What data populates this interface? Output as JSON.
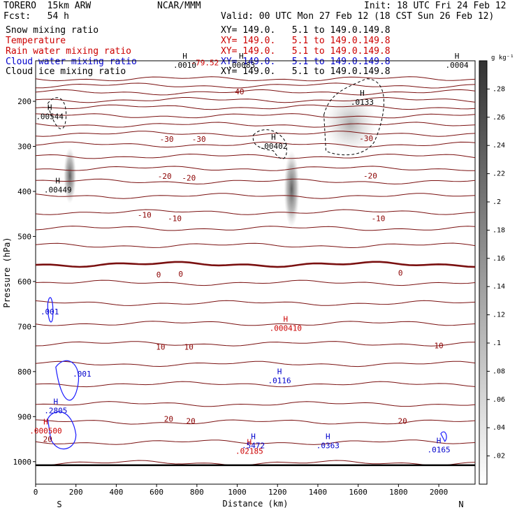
{
  "header": {
    "model": "TORERO  15km ARW",
    "center": "NCAR/MMM",
    "init": "Init: 18 UTC Fri 24 Feb 12",
    "fcst": "Fcst:   54 h",
    "valid": "Valid: 00 UTC Mon 27 Feb 12 (18 CST Sun 26 Feb 12)",
    "fields": [
      {
        "name": "Snow mixing ratio",
        "color": "#000000",
        "xy": "XY= 149.0.   5.1 to 149.0.149.8"
      },
      {
        "name": "Temperature",
        "color": "#cc0000",
        "xy": "XY= 149.0.   5.1 to 149.0.149.8"
      },
      {
        "name": "Rain water mixing ratio",
        "color": "#cc0000",
        "xy": "XY= 149.0.   5.1 to 149.0.149.8"
      },
      {
        "name": "Cloud water mixing ratio",
        "color": "#0000cc",
        "xy": "XY= 149.0.   5.1 to 149.0.149.8"
      },
      {
        "name": "Cloud ice mixing ratio",
        "color": "#000000",
        "xy": "XY= 149.0.   5.1 to 149.0.149.8"
      }
    ]
  },
  "chart_data": {
    "type": "contour",
    "xlabel": "Distance (km)",
    "ylabel": "Pressure (hPa)",
    "xlim": [
      0,
      2180
    ],
    "ylim": [
      1050,
      110
    ],
    "x_ticks": [
      0,
      200,
      400,
      600,
      800,
      1000,
      1200,
      1400,
      1600,
      1800,
      2000
    ],
    "y_ticks": [
      200,
      300,
      400,
      500,
      600,
      700,
      800,
      900,
      1000
    ],
    "x_end_labels": {
      "left": "S",
      "right": "N"
    },
    "colorbar": {
      "unit": "g kg⁻¹",
      "ticks": [
        ".02",
        ".04",
        ".06",
        ".08",
        ".1",
        ".12",
        ".14",
        ".16",
        ".18",
        ".2",
        ".22",
        ".24",
        ".26",
        ".28"
      ]
    },
    "temperature_labels": [
      {
        "x": 1000,
        "p": 178,
        "text": "-40"
      },
      {
        "x": 650,
        "p": 284,
        "text": "-30"
      },
      {
        "x": 810,
        "p": 284,
        "text": "-30"
      },
      {
        "x": 1640,
        "p": 282,
        "text": "-30"
      },
      {
        "x": 640,
        "p": 267,
        "text": "-20",
        "hidden": true
      },
      {
        "x": 640,
        "p": 366,
        "text": "-20"
      },
      {
        "x": 760,
        "p": 370,
        "text": "-20"
      },
      {
        "x": 1660,
        "p": 365,
        "text": "-20"
      },
      {
        "x": 540,
        "p": 452,
        "text": "-10"
      },
      {
        "x": 690,
        "p": 460,
        "text": "-10"
      },
      {
        "x": 1700,
        "p": 460,
        "text": "-10"
      },
      {
        "x": 610,
        "p": 585,
        "text": "0"
      },
      {
        "x": 720,
        "p": 583,
        "text": "0"
      },
      {
        "x": 1810,
        "p": 581,
        "text": "0"
      },
      {
        "x": 620,
        "p": 745,
        "text": "10"
      },
      {
        "x": 760,
        "p": 745,
        "text": "10"
      },
      {
        "x": 2000,
        "p": 742,
        "text": "10"
      },
      {
        "x": 660,
        "p": 905,
        "text": "20"
      },
      {
        "x": 770,
        "p": 910,
        "text": "20"
      },
      {
        "x": 1820,
        "p": 910,
        "text": "20"
      },
      {
        "x": 60,
        "p": 950,
        "text": "20"
      }
    ],
    "extrema": [
      {
        "x": 70,
        "p": 232,
        "h": "H",
        "v": ".00544",
        "color": "#000000"
      },
      {
        "x": 110,
        "p": 395,
        "h": "H",
        "v": ".00449",
        "color": "#000000"
      },
      {
        "x": 1180,
        "p": 298,
        "h": "H",
        "v": ".00402",
        "color": "#000000"
      },
      {
        "x": 1620,
        "p": 200,
        "h": "H",
        "v": ".0133",
        "color": "#000000"
      },
      {
        "x": 740,
        "p": 118,
        "h": "H",
        "v": ".0010",
        "color": "#000000"
      },
      {
        "x": 1020,
        "p": 118,
        "h": "H",
        "v": ".00083",
        "color": "#000000"
      },
      {
        "x": 2090,
        "p": 118,
        "h": "H",
        "v": ".0004",
        "color": "#000000"
      },
      {
        "x": 1240,
        "p": 702,
        "h": "H",
        "v": ".000410",
        "color": "#cc0000"
      },
      {
        "x": 50,
        "p": 930,
        "h": "H",
        "v": ".000500",
        "color": "#cc0000"
      },
      {
        "x": 1060,
        "p": 975,
        "h": "H",
        "v": ".02185",
        "color": "#cc0000"
      },
      {
        "x": 1210,
        "p": 818,
        "h": "H",
        "v": ".0116",
        "color": "#0000cc"
      },
      {
        "x": 100,
        "p": 885,
        "h": "H",
        "v": ".2805",
        "color": "#0000cc"
      },
      {
        "x": 1080,
        "p": 962,
        "h": "H",
        "v": ".5472",
        "color": "#0000cc"
      },
      {
        "x": 1450,
        "p": 962,
        "h": "H",
        "v": ".0363",
        "color": "#0000cc"
      },
      {
        "x": 2000,
        "p": 972,
        "h": "H",
        "v": ".0165",
        "color": "#0000cc"
      }
    ],
    "other_labels": [
      {
        "x": 840,
        "p": 114,
        "text": "-79.52",
        "color": "#cc0000"
      },
      {
        "x": 70,
        "p": 667,
        "text": ".001",
        "color": "#0000cc"
      },
      {
        "x": 230,
        "p": 805,
        "text": ".001",
        "color": "#0000cc"
      }
    ]
  }
}
